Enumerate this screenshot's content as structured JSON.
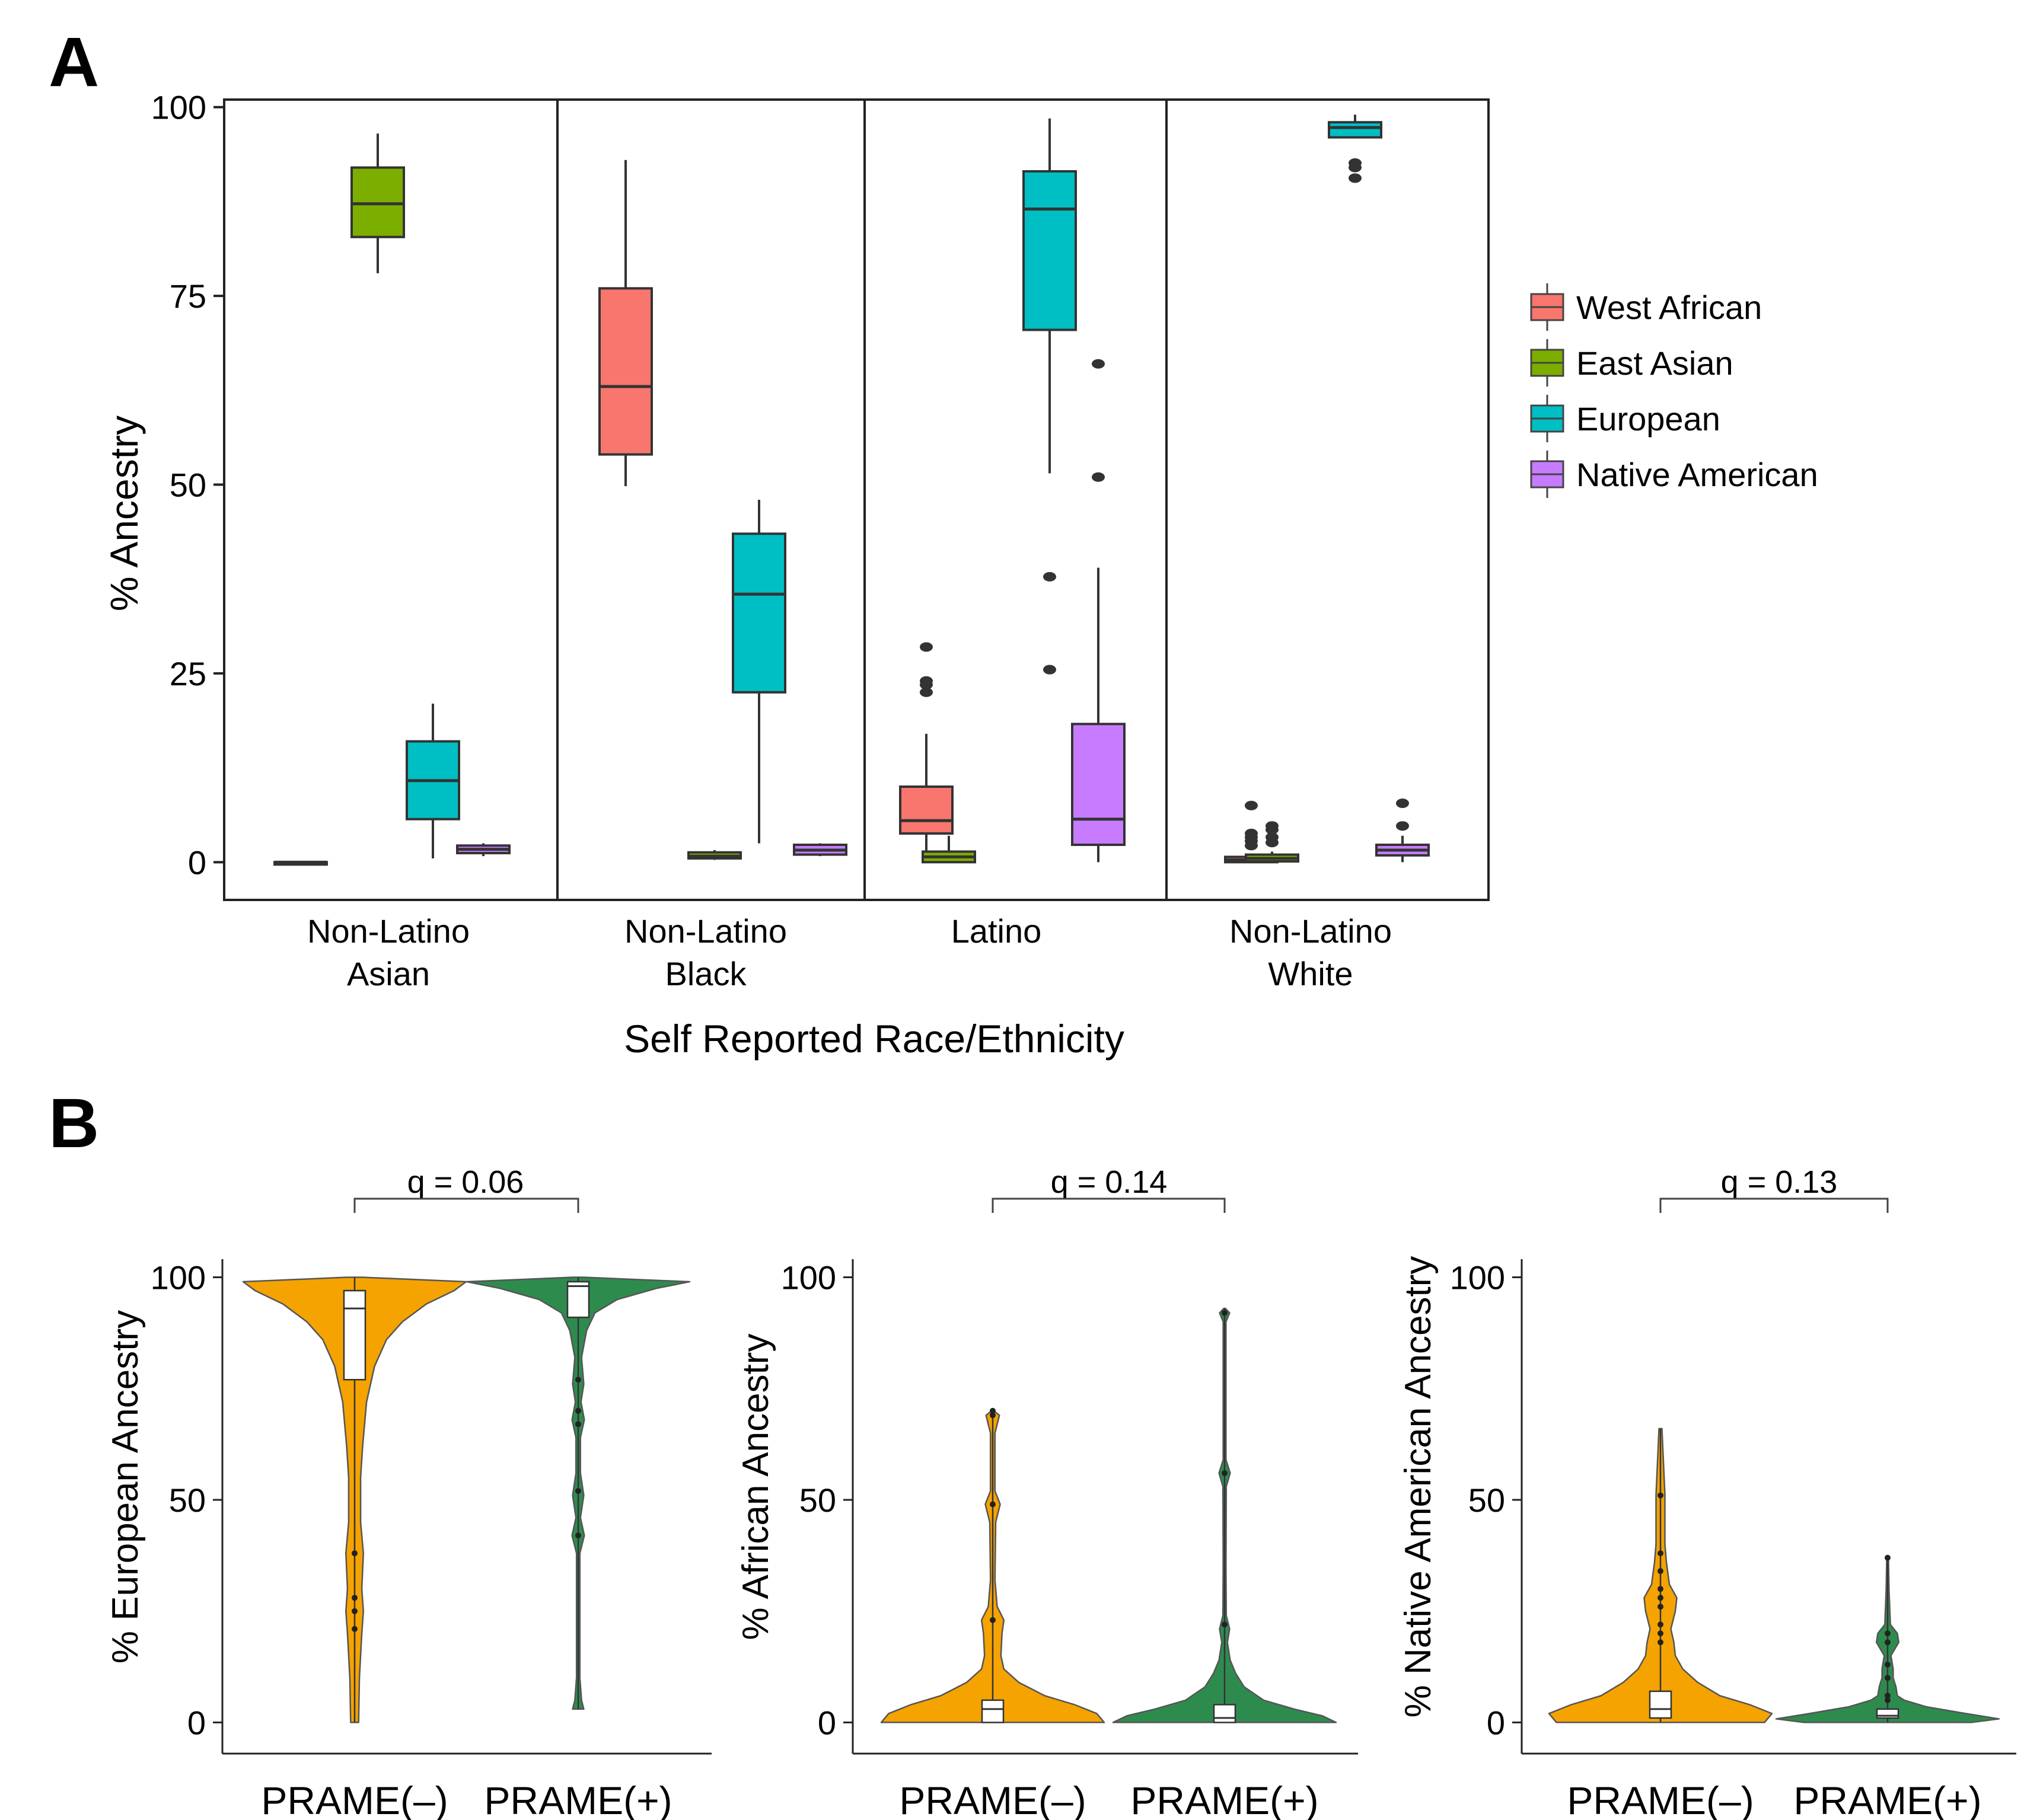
{
  "chart_data": [
    {
      "panel_label": "A",
      "type": "box",
      "ylabel": "% Ancestry",
      "xlabel": "Self Reported Race/Ethnicity",
      "ylim": [
        -5,
        101
      ],
      "yticks": [
        0,
        25,
        50,
        75,
        100
      ],
      "groups": [
        {
          "label_lines": [
            "Non-Latino",
            "Asian"
          ]
        },
        {
          "label_lines": [
            "Non-Latino",
            "Black"
          ]
        },
        {
          "label_lines": [
            "Latino"
          ]
        },
        {
          "label_lines": [
            "Non-Latino",
            "White"
          ]
        }
      ],
      "legend": [
        {
          "name": "West African",
          "color": "#F8766D"
        },
        {
          "name": "East Asian",
          "color": "#7CAE00"
        },
        {
          "name": "European",
          "color": "#00BFC4"
        },
        {
          "name": "Native American",
          "color": "#C77CFF"
        }
      ],
      "boxes": [
        {
          "group": 0,
          "series": 0,
          "min": 0,
          "q1": 0,
          "median": 0,
          "q3": 0,
          "max": 0,
          "outliers": []
        },
        {
          "group": 0,
          "series": 1,
          "min": 78,
          "q1": 82.8,
          "median": 87.2,
          "q3": 92,
          "max": 96.5,
          "outliers": []
        },
        {
          "group": 0,
          "series": 2,
          "min": 0.5,
          "q1": 5.7,
          "median": 10.8,
          "q3": 16,
          "max": 21,
          "outliers": []
        },
        {
          "group": 0,
          "series": 3,
          "min": 0.8,
          "q1": 1.2,
          "median": 1.7,
          "q3": 2.2,
          "max": 2.5,
          "outliers": []
        },
        {
          "group": 1,
          "series": 0,
          "min": 49.8,
          "q1": 54,
          "median": 63,
          "q3": 76,
          "max": 93,
          "outliers": []
        },
        {
          "group": 1,
          "series": 1,
          "min": 0.3,
          "q1": 0.5,
          "median": 0.8,
          "q3": 1.3,
          "max": 1.6,
          "outliers": []
        },
        {
          "group": 1,
          "series": 2,
          "min": 2.5,
          "q1": 22.5,
          "median": 35.5,
          "q3": 43.5,
          "max": 48,
          "outliers": []
        },
        {
          "group": 1,
          "series": 3,
          "min": 0.8,
          "q1": 1,
          "median": 1.6,
          "q3": 2.3,
          "max": 2.5,
          "outliers": []
        },
        {
          "group": 2,
          "series": 0,
          "min": 0,
          "q1": 3.8,
          "median": 5.5,
          "q3": 10,
          "max": 17,
          "outliers": [
            22.5,
            23.5,
            24,
            28.5
          ]
        },
        {
          "group": 2,
          "series": 1,
          "min": 0,
          "q1": 0,
          "median": 0.7,
          "q3": 1.4,
          "max": 3.5,
          "outliers": []
        },
        {
          "group": 2,
          "series": 2,
          "min": 51.5,
          "q1": 70.5,
          "median": 86.5,
          "q3": 91.5,
          "max": 98.5,
          "outliers": [
            25.5,
            37.8
          ]
        },
        {
          "group": 2,
          "series": 3,
          "min": 0,
          "q1": 2.3,
          "median": 5.7,
          "q3": 18.3,
          "max": 39,
          "outliers": [
            51,
            66
          ]
        },
        {
          "group": 3,
          "series": 0,
          "min": 0,
          "q1": 0,
          "median": 0.3,
          "q3": 0.7,
          "max": 0.9,
          "outliers": [
            2.2,
            2.8,
            3.3,
            3.8,
            7.5
          ]
        },
        {
          "group": 3,
          "series": 1,
          "min": 0,
          "q1": 0.1,
          "median": 0.5,
          "q3": 1,
          "max": 1.4,
          "outliers": [
            2.6,
            3.3,
            4.3,
            4.8
          ]
        },
        {
          "group": 3,
          "series": 2,
          "min": 96,
          "q1": 96,
          "median": 97.3,
          "q3": 98,
          "max": 99,
          "outliers": [
            90.6,
            92,
            92.6
          ]
        },
        {
          "group": 3,
          "series": 3,
          "min": 0,
          "q1": 0.9,
          "median": 1.6,
          "q3": 2.3,
          "max": 3.5,
          "outliers": [
            4.8,
            7.8
          ]
        }
      ]
    },
    {
      "panel_label": "B",
      "type": "violin",
      "ylim": [
        -7,
        103
      ],
      "yticks": [
        0,
        50,
        100
      ],
      "categories": [
        "PRAME(–)",
        "PRAME(+)"
      ],
      "colors": [
        "#F5A300",
        "#2E8B4E"
      ],
      "panels": [
        {
          "ylabel": "% European Ancestry",
          "q_label": "q = 0.06",
          "violins": [
            {
              "min": 0,
              "q1": 77,
              "median": 93,
              "q3": 97,
              "max": 100,
              "profile": [
                [
                  0,
                  1
                ],
                [
                  10,
                  1.2
                ],
                [
                  20,
                  1.8
                ],
                [
                  25,
                  2.2
                ],
                [
                  30,
                  1.8
                ],
                [
                  38,
                  2.2
                ],
                [
                  45,
                  1.5
                ],
                [
                  55,
                  1.5
                ],
                [
                  62,
                  2
                ],
                [
                  72,
                  3
                ],
                [
                  80,
                  5
                ],
                [
                  86,
                  8
                ],
                [
                  90,
                  12
                ],
                [
                  94,
                  18
                ],
                [
                  97,
                  25
                ],
                [
                  99,
                  28
                ],
                [
                  100,
                  2
                ]
              ],
              "points": [
                21,
                25,
                28,
                38
              ]
            },
            {
              "min": 3,
              "q1": 91,
              "median": 98,
              "q3": 99,
              "max": 100,
              "profile": [
                [
                  3,
                  2
                ],
                [
                  5,
                  1.2
                ],
                [
                  10,
                  0.6
                ],
                [
                  38,
                  0.6
                ],
                [
                  42,
                  2.2
                ],
                [
                  46,
                  0.8
                ],
                [
                  51,
                  2
                ],
                [
                  56,
                  0.8
                ],
                [
                  64,
                  0.8
                ],
                [
                  68,
                  2.2
                ],
                [
                  72,
                  1
                ],
                [
                  76,
                  2
                ],
                [
                  82,
                  1.2
                ],
                [
                  88,
                  3
                ],
                [
                  92,
                  6
                ],
                [
                  95,
                  14
                ],
                [
                  97.5,
                  28
                ],
                [
                  99,
                  40
                ],
                [
                  100,
                  2
                ]
              ],
              "points": [
                42,
                52,
                67,
                70,
                77
              ]
            }
          ]
        },
        {
          "ylabel": "% African Ancestry",
          "q_label": "q = 0.14",
          "violins": [
            {
              "min": 0,
              "q1": 0,
              "median": 3,
              "q3": 5,
              "max": 70,
              "profile": [
                [
                  0,
                  30
                ],
                [
                  2,
                  28
                ],
                [
                  4,
                  22
                ],
                [
                  6,
                  14
                ],
                [
                  9,
                  7
                ],
                [
                  12,
                  3
                ],
                [
                  15,
                  2.2
                ],
                [
                  20,
                  2.5
                ],
                [
                  23,
                  3
                ],
                [
                  26,
                  1.2
                ],
                [
                  32,
                  0.6
                ],
                [
                  45,
                  0.8
                ],
                [
                  49,
                  2
                ],
                [
                  52,
                  0.6
                ],
                [
                  65,
                  0.6
                ],
                [
                  69,
                  1.8
                ],
                [
                  70,
                  0.3
                ]
              ],
              "points": [
                23,
                49,
                69,
                70
              ]
            },
            {
              "min": 0,
              "q1": 0,
              "median": 1,
              "q3": 4,
              "max": 93,
              "profile": [
                [
                  0,
                  40
                ],
                [
                  1.5,
                  35
                ],
                [
                  3,
                  25
                ],
                [
                  5,
                  14
                ],
                [
                  8,
                  7
                ],
                [
                  11,
                  4
                ],
                [
                  14,
                  2
                ],
                [
                  18,
                  1
                ],
                [
                  21,
                  1.8
                ],
                [
                  24,
                  0.6
                ],
                [
                  35,
                  0.5
                ],
                [
                  53,
                  0.6
                ],
                [
                  56,
                  2
                ],
                [
                  59,
                  0.5
                ],
                [
                  90,
                  0.5
                ],
                [
                  92,
                  1.8
                ],
                [
                  93,
                  0.3
                ]
              ],
              "points": [
                22,
                56,
                92
              ]
            }
          ]
        },
        {
          "ylabel": "% Native American Ancestry",
          "q_label": "q = 0.13",
          "violins": [
            {
              "min": 0,
              "q1": 1,
              "median": 3,
              "q3": 7,
              "max": 66,
              "profile": [
                [
                  0,
                  14
                ],
                [
                  2,
                  15
                ],
                [
                  4,
                  12
                ],
                [
                  6,
                  8
                ],
                [
                  9,
                  5
                ],
                [
                  12,
                  3
                ],
                [
                  15,
                  2
                ],
                [
                  18,
                  1.8
                ],
                [
                  21,
                  1.4
                ],
                [
                  25,
                  2
                ],
                [
                  28,
                  2.2
                ],
                [
                  31,
                  1.2
                ],
                [
                  36,
                  0.8
                ],
                [
                  40,
                  0.6
                ],
                [
                  51,
                  0.6
                ],
                [
                  66,
                  0.2
                ]
              ],
              "points": [
                18,
                20,
                22,
                26,
                28,
                30,
                34,
                38,
                51
              ]
            },
            {
              "min": 0,
              "q1": 1,
              "median": 1.5,
              "q3": 3,
              "max": 37,
              "profile": [
                [
                  0,
                  30
                ],
                [
                  0.8,
                  40
                ],
                [
                  2,
                  28
                ],
                [
                  3.5,
                  14
                ],
                [
                  5,
                  6
                ],
                [
                  6,
                  3.5
                ],
                [
                  8,
                  3
                ],
                [
                  10,
                  2
                ],
                [
                  12,
                  2
                ],
                [
                  15,
                  1.2
                ],
                [
                  18,
                  4
                ],
                [
                  20,
                  3.5
                ],
                [
                  22,
                  1
                ],
                [
                  30,
                  0.5
                ],
                [
                  37,
                  0.3
                ]
              ],
              "points": [
                5,
                6,
                10,
                13,
                18,
                20,
                37
              ]
            }
          ]
        }
      ]
    }
  ]
}
